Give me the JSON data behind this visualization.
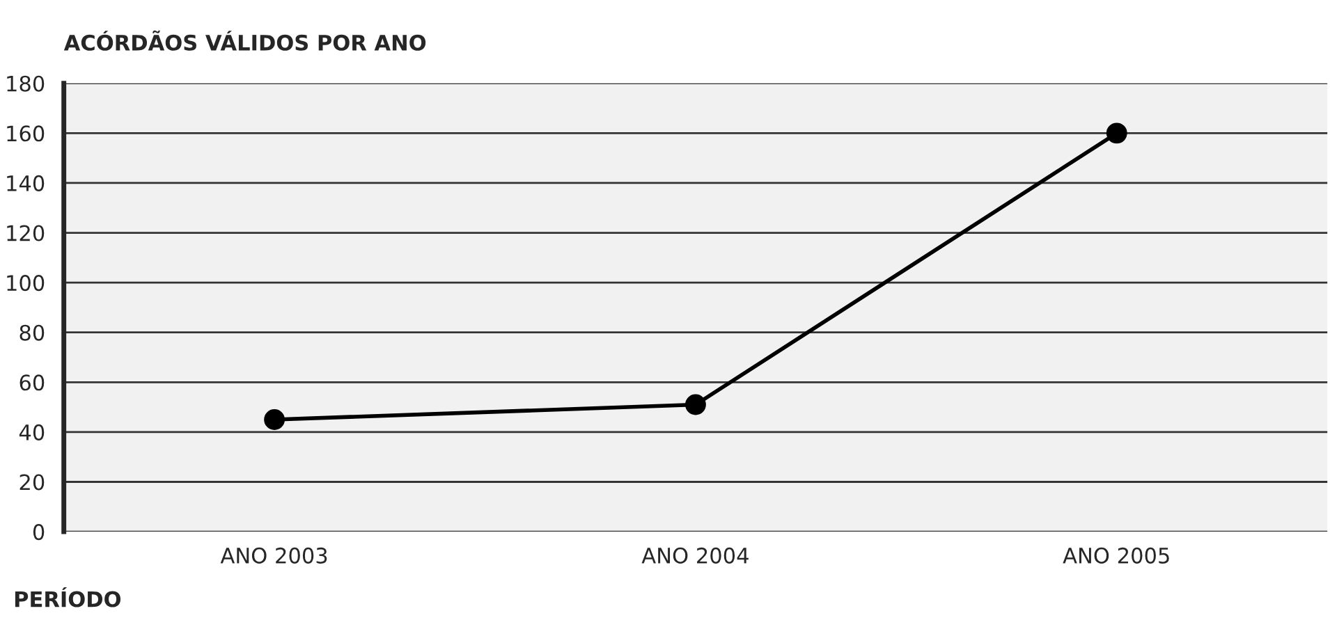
{
  "chart_data": {
    "type": "line",
    "title": "ACÓRDÃOS VÁLIDOS POR ANO",
    "xlabel": "PERÍODO",
    "categories": [
      "ANO 2003",
      "ANO 2004",
      "ANO 2005"
    ],
    "series": [
      {
        "color": "#000000",
        "values": [
          45,
          51,
          160
        ]
      }
    ],
    "ylim": [
      0,
      180
    ],
    "yticks": [
      0,
      20,
      40,
      60,
      80,
      100,
      120,
      140,
      160,
      180
    ],
    "grid": "y",
    "marker": "circle",
    "line_style": "solid"
  }
}
